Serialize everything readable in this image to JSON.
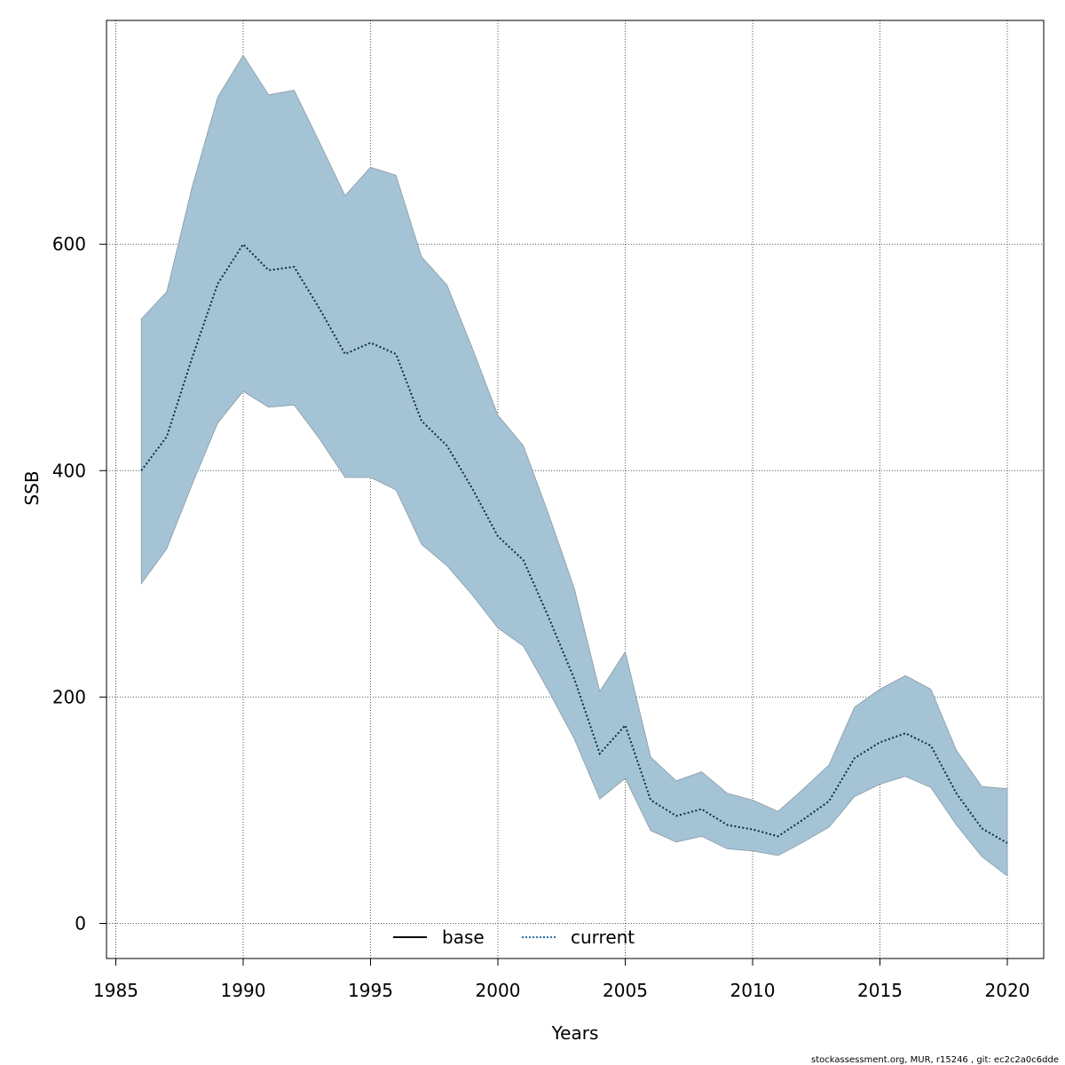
{
  "chart_data": {
    "type": "line",
    "xlabel": "Years",
    "ylabel": "SSB",
    "xlim": [
      1985,
      2020
    ],
    "ylim": [
      0,
      800
    ],
    "x_ticks": [
      "1985",
      "1990",
      "1995",
      "2000",
      "2005",
      "2010",
      "2015",
      "2020"
    ],
    "y_ticks": [
      "0",
      "200",
      "400",
      "600"
    ],
    "grid": true,
    "legend_position": "bottom-center",
    "x": [
      1986,
      1987,
      1988,
      1989,
      1990,
      1991,
      1992,
      1993,
      1994,
      1995,
      1996,
      1997,
      1998,
      1999,
      2000,
      2001,
      2002,
      2003,
      2004,
      2005,
      2006,
      2007,
      2008,
      2009,
      2010,
      2011,
      2012,
      2013,
      2014,
      2015,
      2016,
      2017,
      2018,
      2019,
      2020
    ],
    "series": [
      {
        "name": "base",
        "line_style": "solid",
        "color": "#000000",
        "values": [
          400,
          430,
          500,
          565,
          600,
          577,
          580,
          543,
          503,
          513,
          503,
          444,
          422,
          384,
          342,
          321,
          270,
          216,
          150,
          175,
          109,
          95,
          101,
          87,
          83,
          77,
          92,
          108,
          146,
          160,
          168,
          157,
          115,
          84,
          71
        ]
      },
      {
        "name": "current",
        "line_style": "dotted",
        "color": "#2a6fa8",
        "values": [
          400,
          430,
          500,
          565,
          600,
          577,
          580,
          543,
          503,
          513,
          503,
          444,
          422,
          384,
          342,
          321,
          270,
          216,
          150,
          175,
          109,
          95,
          101,
          87,
          83,
          77,
          92,
          108,
          146,
          160,
          168,
          157,
          115,
          84,
          71
        ]
      }
    ],
    "band": {
      "color": "#a4c3d5",
      "lower": [
        300,
        331,
        388,
        442,
        470,
        456,
        458,
        428,
        394,
        394,
        383,
        335,
        316,
        290,
        261,
        245,
        205,
        163,
        110,
        128,
        82,
        72,
        77,
        66,
        64,
        60,
        72,
        85,
        112,
        123,
        130,
        120,
        87,
        59,
        42
      ],
      "upper": [
        534,
        558,
        651,
        730,
        767,
        732,
        736,
        690,
        643,
        668,
        661,
        589,
        564,
        508,
        449,
        422,
        361,
        296,
        205,
        240,
        147,
        126,
        134,
        115,
        109,
        99,
        119,
        140,
        191,
        207,
        219,
        207,
        153,
        121,
        119
      ]
    }
  },
  "footer": {
    "credit": "stockassessment.org, MUR, r15246 , git: ec2c2a0c6dde"
  }
}
